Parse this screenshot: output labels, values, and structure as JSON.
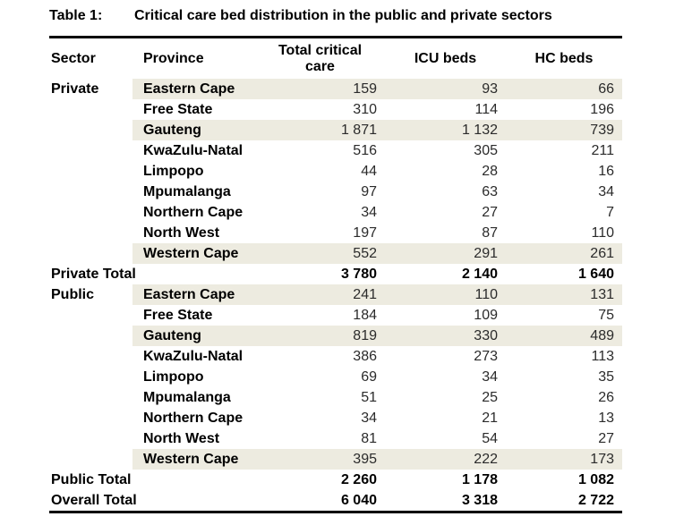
{
  "title": {
    "label": "Table 1:",
    "caption": "Critical care bed distribution in the public and private sectors"
  },
  "table": {
    "columns": [
      "Sector",
      "Province",
      "Total critical care",
      "ICU beds",
      "HC beds"
    ],
    "colors": {
      "row_shade": "#EDEBE0",
      "border": "#000000"
    },
    "rows": [
      {
        "type": "data",
        "sector": "Private",
        "province": "Eastern Cape",
        "total": "159",
        "icu": "93",
        "hc": "66",
        "shaded": true
      },
      {
        "type": "data",
        "sector": "",
        "province": "Free State",
        "total": "310",
        "icu": "114",
        "hc": "196",
        "shaded": false
      },
      {
        "type": "data",
        "sector": "",
        "province": "Gauteng",
        "total": "1 871",
        "icu": "1 132",
        "hc": "739",
        "shaded": true
      },
      {
        "type": "data",
        "sector": "",
        "province": "KwaZulu-Natal",
        "total": "516",
        "icu": "305",
        "hc": "211",
        "shaded": false
      },
      {
        "type": "data",
        "sector": "",
        "province": "Limpopo",
        "total": "44",
        "icu": "28",
        "hc": "16",
        "shaded": false
      },
      {
        "type": "data",
        "sector": "",
        "province": "Mpumalanga",
        "total": "97",
        "icu": "63",
        "hc": "34",
        "shaded": false
      },
      {
        "type": "data",
        "sector": "",
        "province": "Northern Cape",
        "total": "34",
        "icu": "27",
        "hc": "7",
        "shaded": false
      },
      {
        "type": "data",
        "sector": "",
        "province": "North West",
        "total": "197",
        "icu": "87",
        "hc": "110",
        "shaded": false
      },
      {
        "type": "data",
        "sector": "",
        "province": "Western Cape",
        "total": "552",
        "icu": "291",
        "hc": "261",
        "shaded": true
      },
      {
        "type": "total",
        "label": "Private Total",
        "total": "3 780",
        "icu": "2 140",
        "hc": "1 640"
      },
      {
        "type": "data",
        "sector": "Public",
        "province": "Eastern Cape",
        "total": "241",
        "icu": "110",
        "hc": "131",
        "shaded": true
      },
      {
        "type": "data",
        "sector": "",
        "province": "Free State",
        "total": "184",
        "icu": "109",
        "hc": "75",
        "shaded": false
      },
      {
        "type": "data",
        "sector": "",
        "province": "Gauteng",
        "total": "819",
        "icu": "330",
        "hc": "489",
        "shaded": true
      },
      {
        "type": "data",
        "sector": "",
        "province": "KwaZulu-Natal",
        "total": "386",
        "icu": "273",
        "hc": "113",
        "shaded": false
      },
      {
        "type": "data",
        "sector": "",
        "province": "Limpopo",
        "total": "69",
        "icu": "34",
        "hc": "35",
        "shaded": false
      },
      {
        "type": "data",
        "sector": "",
        "province": "Mpumalanga",
        "total": "51",
        "icu": "25",
        "hc": "26",
        "shaded": false
      },
      {
        "type": "data",
        "sector": "",
        "province": "Northern Cape",
        "total": "34",
        "icu": "21",
        "hc": "13",
        "shaded": false
      },
      {
        "type": "data",
        "sector": "",
        "province": "North West",
        "total": "81",
        "icu": "54",
        "hc": "27",
        "shaded": false
      },
      {
        "type": "data",
        "sector": "",
        "province": "Western Cape",
        "total": "395",
        "icu": "222",
        "hc": "173",
        "shaded": true
      },
      {
        "type": "total",
        "label": "Public Total",
        "total": "2 260",
        "icu": "1 178",
        "hc": "1 082"
      },
      {
        "type": "total",
        "label": "Overall Total",
        "total": "6 040",
        "icu": "3 318",
        "hc": "2 722"
      }
    ]
  }
}
